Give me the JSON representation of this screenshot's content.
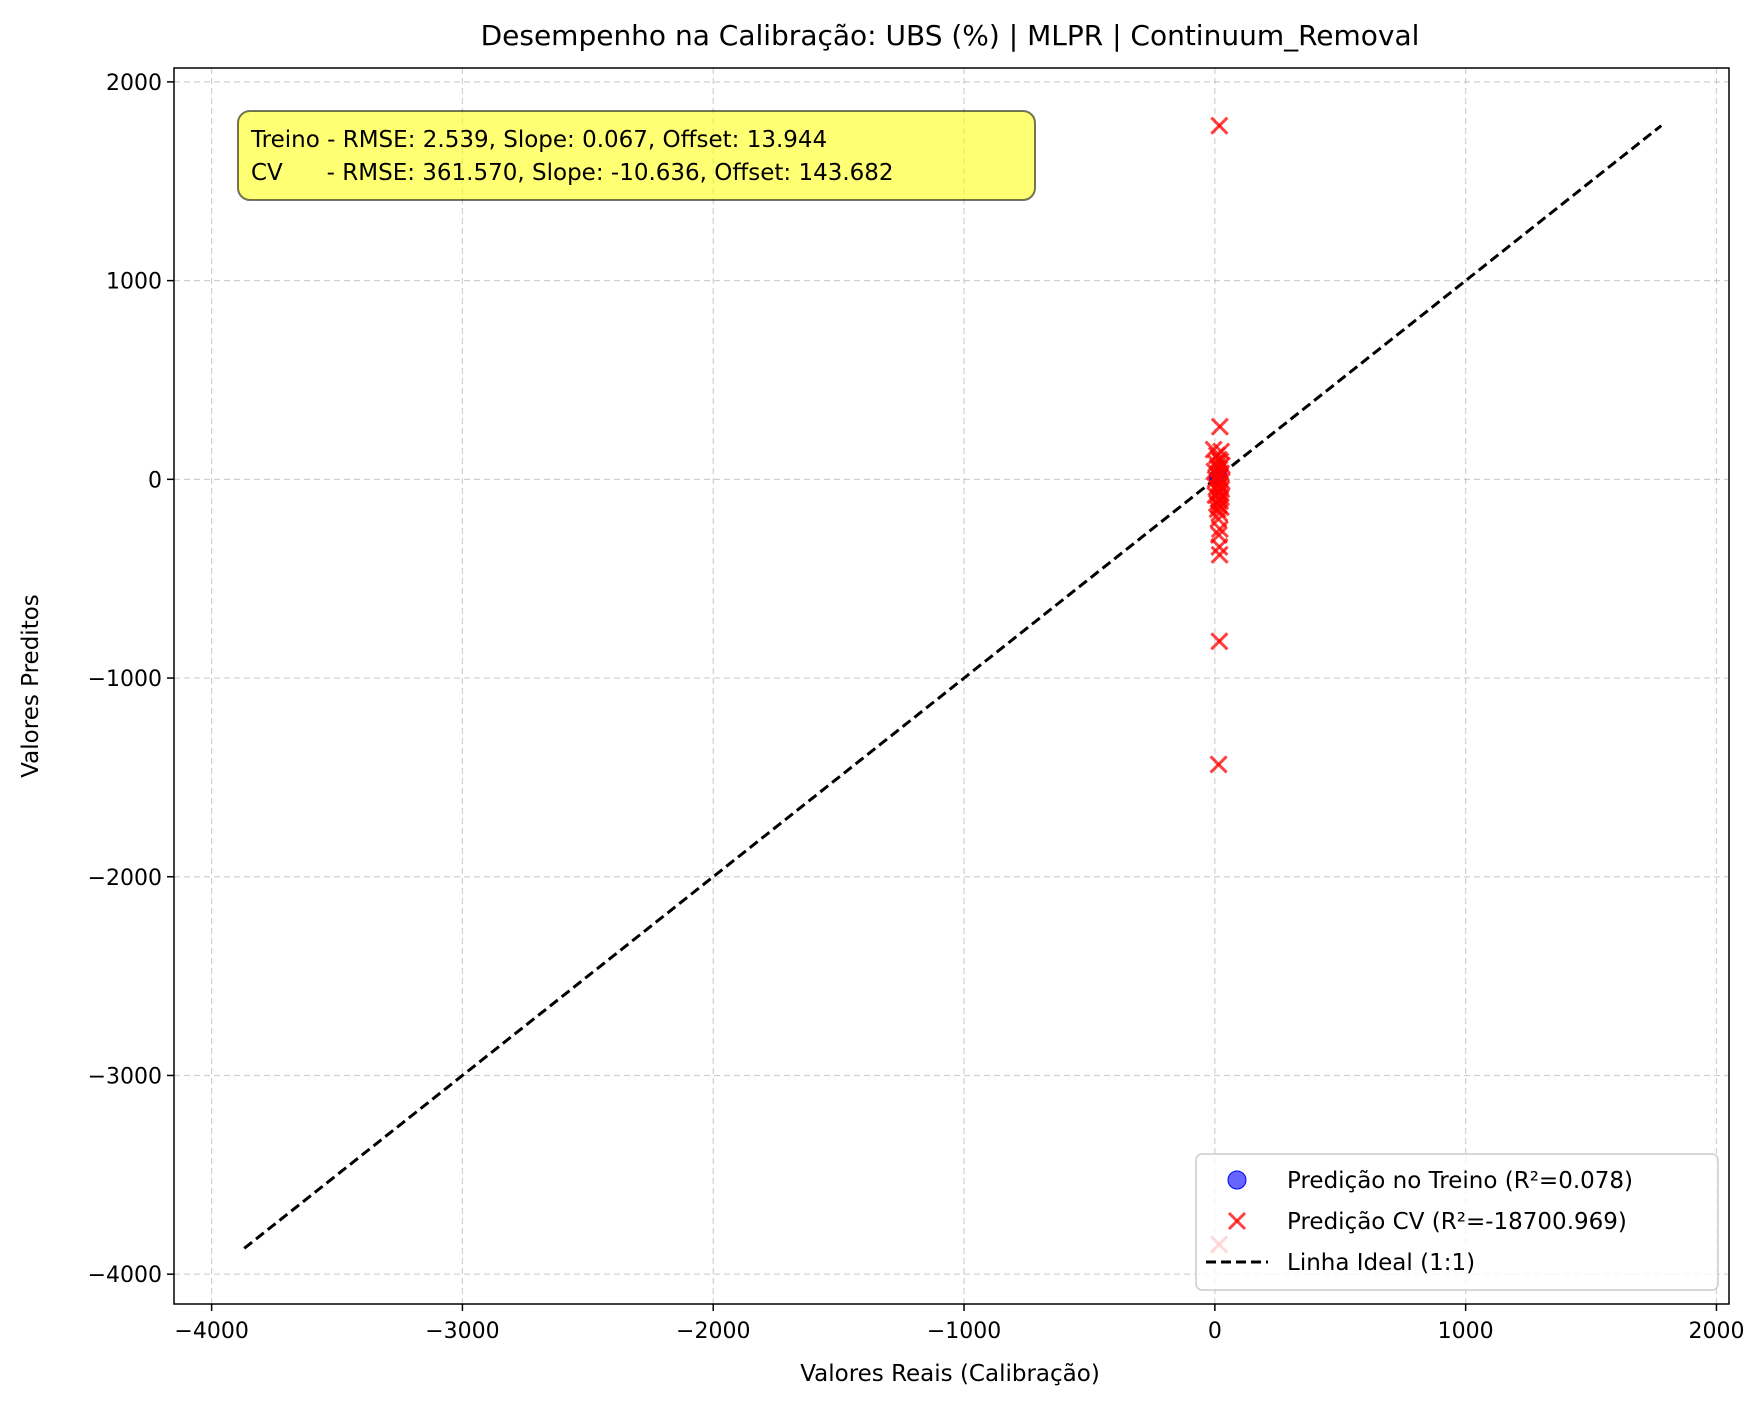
{
  "chart_data": {
    "type": "scatter",
    "title": "Desempenho na Calibração: UBS (%) | MLPR | Continuum_Removal",
    "xlabel": "Valores Reais (Calibração)",
    "ylabel": "Valores Preditos",
    "xlim": [
      -4150,
      2050
    ],
    "ylim": [
      -4150,
      2070
    ],
    "xticks": [
      -4000,
      -3000,
      -2000,
      -1000,
      0,
      1000,
      2000
    ],
    "yticks": [
      -4000,
      -3000,
      -2000,
      -1000,
      0,
      1000,
      2000
    ],
    "xtick_labels": [
      "−4000",
      "−3000",
      "−2000",
      "−1000",
      "0",
      "1000",
      "2000"
    ],
    "ytick_labels": [
      "−4000",
      "−3000",
      "−2000",
      "−1000",
      "0",
      "1000",
      "2000"
    ],
    "grid": true,
    "legend_position": "bottom-right",
    "stats_box": {
      "line1": "Treino - RMSE: 2.539, Slope: 0.067, Offset: 13.944",
      "line2": "CV      - RMSE: 361.570, Slope: -10.636, Offset: 143.682"
    },
    "series": [
      {
        "name": "Predição no Treino (R²=0.078)",
        "marker": "circle",
        "color": "#0000ff",
        "points": [
          [
            5,
            10
          ],
          [
            8,
            14
          ],
          [
            10,
            12
          ],
          [
            12,
            16
          ],
          [
            14,
            13
          ],
          [
            16,
            15
          ],
          [
            18,
            14
          ],
          [
            20,
            17
          ],
          [
            9,
            11
          ],
          [
            15,
            14
          ],
          [
            11,
            13
          ],
          [
            13,
            15
          ]
        ]
      },
      {
        "name": "Predição CV (R²=-18700.969)",
        "marker": "x",
        "color": "#ff0000",
        "points": [
          [
            18,
            1780
          ],
          [
            20,
            265
          ],
          [
            -5,
            150
          ],
          [
            25,
            140
          ],
          [
            8,
            120
          ],
          [
            15,
            100
          ],
          [
            22,
            90
          ],
          [
            5,
            80
          ],
          [
            28,
            70
          ],
          [
            12,
            60
          ],
          [
            18,
            50
          ],
          [
            -2,
            40
          ],
          [
            25,
            30
          ],
          [
            10,
            20
          ],
          [
            20,
            10
          ],
          [
            3,
            0
          ],
          [
            28,
            -10
          ],
          [
            15,
            -20
          ],
          [
            22,
            -30
          ],
          [
            6,
            -40
          ],
          [
            26,
            -50
          ],
          [
            12,
            -60
          ],
          [
            19,
            -70
          ],
          [
            2,
            -80
          ],
          [
            25,
            -90
          ],
          [
            14,
            -100
          ],
          [
            21,
            -110
          ],
          [
            8,
            -120
          ],
          [
            17,
            -130
          ],
          [
            24,
            -140
          ],
          [
            11,
            -150
          ],
          [
            18,
            -170
          ],
          [
            14,
            -200
          ],
          [
            20,
            -250
          ],
          [
            16,
            -280
          ],
          [
            18,
            -340
          ],
          [
            19,
            -380
          ],
          [
            18,
            -815
          ],
          [
            15,
            -1435
          ],
          [
            17,
            -3850
          ]
        ]
      },
      {
        "name": "Linha Ideal (1:1)",
        "marker": "dashed-line",
        "color": "#000000",
        "points": [
          [
            -3870,
            -3870
          ],
          [
            1780,
            1780
          ]
        ]
      }
    ]
  }
}
